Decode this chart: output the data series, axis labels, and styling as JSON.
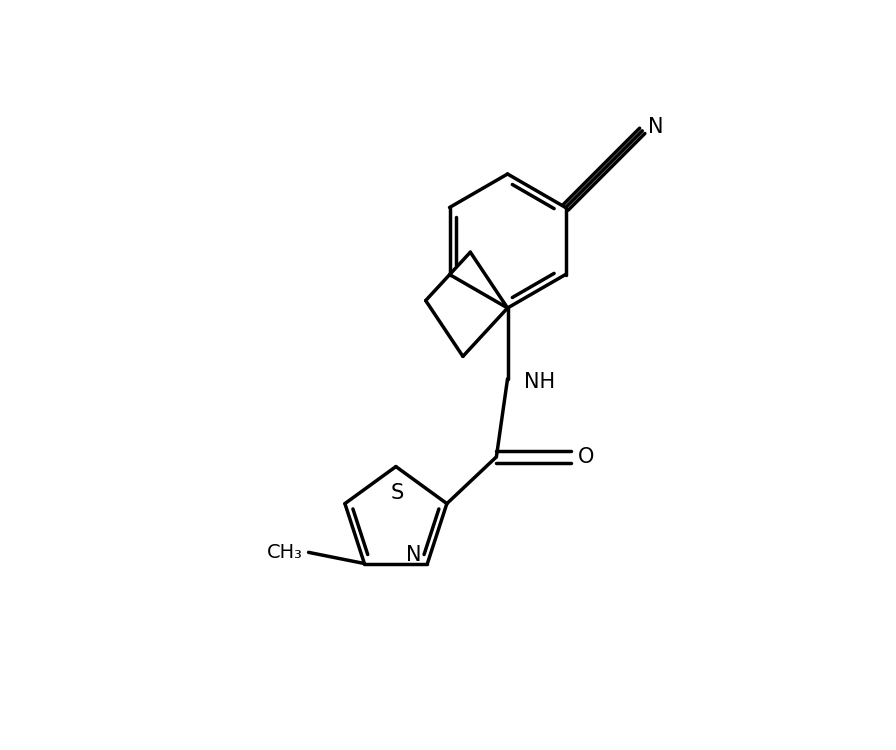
{
  "background_color": "#ffffff",
  "bond_color": "#000000",
  "text_color": "#000000",
  "line_width": 2.5,
  "font_size": 15,
  "figsize": [
    8.96,
    7.5
  ],
  "dpi": 100,
  "xlim": [
    0,
    10
  ],
  "ylim": [
    0,
    10
  ]
}
